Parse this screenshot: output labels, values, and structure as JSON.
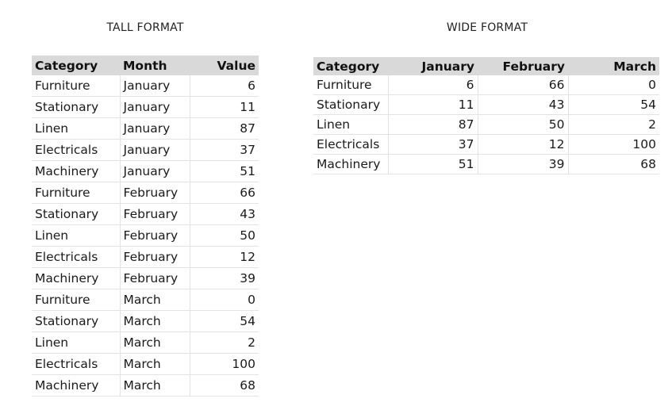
{
  "tall": {
    "title": "TALL FORMAT",
    "headers": {
      "category": "Category",
      "month": "Month",
      "value": "Value"
    },
    "rows": [
      {
        "category": "Furniture",
        "month": "January",
        "value": "6"
      },
      {
        "category": "Stationary",
        "month": "January",
        "value": "11"
      },
      {
        "category": "Linen",
        "month": "January",
        "value": "87"
      },
      {
        "category": "Electricals",
        "month": "January",
        "value": "37"
      },
      {
        "category": "Machinery",
        "month": "January",
        "value": "51"
      },
      {
        "category": "Furniture",
        "month": "February",
        "value": "66"
      },
      {
        "category": "Stationary",
        "month": "February",
        "value": "43"
      },
      {
        "category": "Linen",
        "month": "February",
        "value": "50"
      },
      {
        "category": "Electricals",
        "month": "February",
        "value": "12"
      },
      {
        "category": "Machinery",
        "month": "February",
        "value": "39"
      },
      {
        "category": "Furniture",
        "month": "March",
        "value": "0"
      },
      {
        "category": "Stationary",
        "month": "March",
        "value": "54"
      },
      {
        "category": "Linen",
        "month": "March",
        "value": "2"
      },
      {
        "category": "Electricals",
        "month": "March",
        "value": "100"
      },
      {
        "category": "Machinery",
        "month": "March",
        "value": "68"
      }
    ]
  },
  "wide": {
    "title": "WIDE FORMAT",
    "headers": {
      "category": "Category",
      "january": "January",
      "february": "February",
      "march": "March"
    },
    "rows": [
      {
        "category": "Furniture",
        "january": "6",
        "february": "66",
        "march": "0"
      },
      {
        "category": "Stationary",
        "january": "11",
        "february": "43",
        "march": "54"
      },
      {
        "category": "Linen",
        "january": "87",
        "february": "50",
        "march": "2"
      },
      {
        "category": "Electricals",
        "january": "37",
        "february": "12",
        "march": "100"
      },
      {
        "category": "Machinery",
        "january": "51",
        "february": "39",
        "march": "68"
      }
    ]
  }
}
